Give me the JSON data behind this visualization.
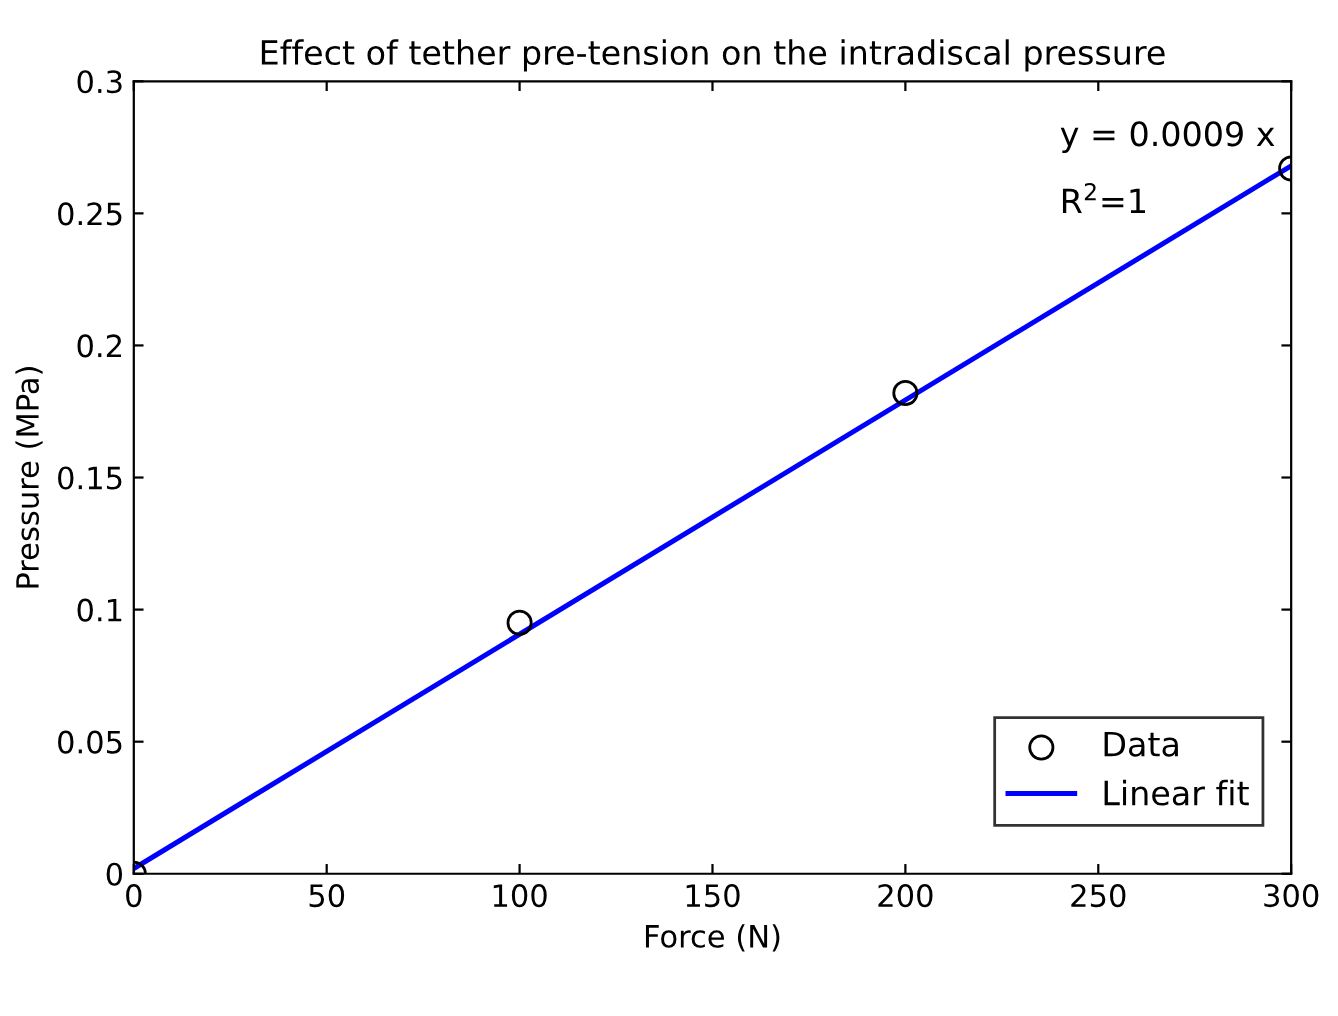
{
  "chart_data": {
    "type": "scatter",
    "title": "Effect of tether pre-tension on the intradiscal pressure",
    "xlabel": "Force (N)",
    "ylabel": "Pressure (MPa)",
    "x": [
      0,
      100,
      200,
      300
    ],
    "series": [
      {
        "name": "Data",
        "color": "#000000",
        "marker": "circle",
        "values": [
          0,
          0.095,
          0.182,
          0.267
        ]
      },
      {
        "name": "Linear fit",
        "type": "line",
        "color": "#0000ff",
        "marker": "none",
        "line_style": "solid",
        "x": [
          0,
          300
        ],
        "values": [
          0.002,
          0.268
        ]
      }
    ],
    "xlim": [
      0,
      300
    ],
    "xticks": [
      0,
      50,
      100,
      150,
      200,
      250,
      300
    ],
    "ylim": [
      0,
      0.3
    ],
    "yticks": [
      0,
      0.05,
      0.1,
      0.15,
      0.2,
      0.25,
      0.3
    ],
    "grid": false,
    "legend": "bottom right",
    "annotations": [
      "y = 0.0009 x",
      "R$^{2}$=1"
    ]
  }
}
